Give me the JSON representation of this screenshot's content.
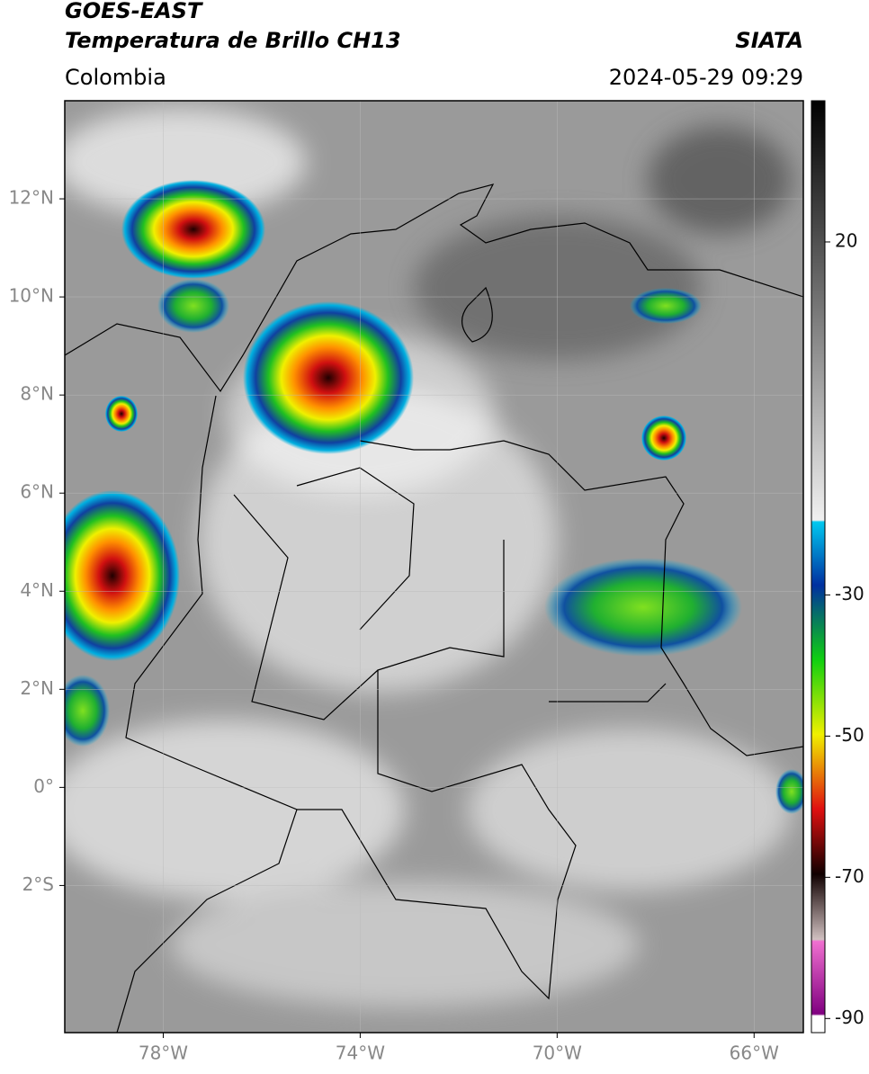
{
  "header": {
    "title": "GOES-EAST",
    "subtitle": "Temperatura de Brillo CH13",
    "region": "Colombia",
    "source": "SIATA",
    "datetime": "2024-05-29 09:29"
  },
  "map": {
    "xlim": [
      -80,
      -65
    ],
    "ylim": [
      -5,
      14
    ],
    "xticks": [
      {
        "value": -78,
        "label": "78°W"
      },
      {
        "value": -74,
        "label": "74°W"
      },
      {
        "value": -70,
        "label": "70°W"
      },
      {
        "value": -66,
        "label": "66°W"
      }
    ],
    "yticks": [
      {
        "value": 12,
        "label": "12°N"
      },
      {
        "value": 10,
        "label": "10°N"
      },
      {
        "value": 8,
        "label": "8°N"
      },
      {
        "value": 6,
        "label": "6°N"
      },
      {
        "value": 4,
        "label": "4°N"
      },
      {
        "value": 2,
        "label": "2°N"
      },
      {
        "value": 0,
        "label": "0°"
      },
      {
        "value": -2,
        "label": "2°S"
      }
    ],
    "grid": true
  },
  "colorbar": {
    "lim": [
      -92,
      40
    ],
    "ticks": [
      20,
      -30,
      -50,
      -70,
      -90
    ]
  }
}
